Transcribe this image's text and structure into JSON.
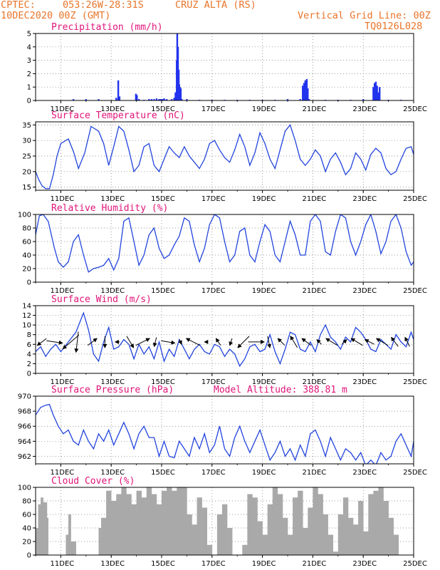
{
  "header": {
    "source": "CPTEC:",
    "coords": "053:26W-28:31S",
    "station": "CRUZ ALTA (RS)",
    "run_date": "10DEC2020 00Z (GMT)",
    "grid_note": "Vertical Grid Line: 00Z",
    "model_code": "TQ0126L028"
  },
  "colors": {
    "header": "#e8752a",
    "title": "#e0147a",
    "line": "#2244dd",
    "bar": "#2233ee",
    "cloud": "#a9a9a9"
  },
  "x_axis": {
    "days": 15,
    "tick_labels": [
      "11DEC",
      "13DEC",
      "15DEC",
      "17DEC",
      "19DEC",
      "21DEC",
      "23DEC",
      "25DEC"
    ],
    "tick_day_offsets": [
      1,
      3,
      5,
      7,
      9,
      11,
      13,
      15
    ]
  },
  "chart_data": [
    {
      "id": "precip",
      "type": "bar",
      "title": "Precipitation (mm/h)",
      "yticks": [
        0,
        1,
        2,
        3,
        4,
        5
      ],
      "ylim": [
        0,
        5
      ],
      "x_days": [
        1.5,
        2.0,
        2.5,
        3.2,
        3.28,
        3.33,
        3.98,
        4.02,
        4.1,
        4.3,
        4.5,
        4.6,
        4.7,
        4.8,
        4.9,
        4.95,
        5.0,
        5.05,
        5.1,
        5.2,
        5.4,
        5.5,
        5.55,
        5.6,
        5.62,
        5.65,
        5.68,
        5.7,
        5.73,
        5.76,
        5.8,
        6.0,
        6.5,
        7.0,
        7.5,
        8.0,
        8.5,
        9.0,
        9.5,
        10.0,
        10.5,
        10.6,
        10.65,
        10.7,
        10.73,
        10.76,
        10.8,
        10.85,
        11.5,
        12.0,
        12.5,
        13.0,
        13.4,
        13.45,
        13.5,
        13.55,
        13.6,
        13.65,
        14.0,
        14.5
      ],
      "values": [
        0.1,
        0.1,
        0.1,
        0.2,
        1.5,
        0.3,
        0.5,
        0.4,
        0.1,
        0.05,
        0.1,
        0.1,
        0.1,
        0.15,
        0.1,
        0.1,
        0.1,
        0.1,
        0.15,
        0.1,
        0.1,
        0.2,
        0.6,
        3.0,
        5.0,
        4.0,
        2.3,
        1.2,
        1.0,
        0.9,
        0.1,
        0.1,
        0.05,
        0.05,
        0.05,
        0.05,
        0.05,
        0.05,
        0.05,
        0.1,
        0.1,
        1.1,
        1.3,
        1.5,
        1.2,
        1.6,
        0.9,
        0.1,
        0.05,
        0.05,
        0.05,
        0.1,
        1.0,
        1.3,
        1.4,
        1.1,
        0.6,
        1.0,
        0.05,
        0.05
      ]
    },
    {
      "id": "temp",
      "type": "line",
      "title": "Surface Temperature (nC)",
      "yticks": [
        15,
        20,
        25,
        30,
        35
      ],
      "ylim": [
        14,
        36
      ],
      "x_days": [
        0.0,
        0.12,
        0.25,
        0.4,
        0.55,
        0.7,
        0.85,
        1.0,
        1.3,
        1.5,
        1.7,
        1.95,
        2.2,
        2.5,
        2.7,
        2.9,
        3.1,
        3.3,
        3.5,
        3.7,
        3.9,
        4.1,
        4.3,
        4.5,
        4.7,
        4.9,
        5.1,
        5.3,
        5.5,
        5.7,
        5.9,
        6.1,
        6.3,
        6.5,
        6.7,
        6.9,
        7.1,
        7.3,
        7.5,
        7.7,
        7.9,
        8.1,
        8.3,
        8.5,
        8.7,
        8.9,
        9.1,
        9.3,
        9.5,
        9.7,
        9.9,
        10.1,
        10.3,
        10.5,
        10.7,
        10.9,
        11.1,
        11.3,
        11.5,
        11.7,
        11.9,
        12.1,
        12.3,
        12.5,
        12.7,
        12.9,
        13.1,
        13.3,
        13.5,
        13.7,
        13.9,
        14.1,
        14.3,
        14.5,
        14.7,
        14.9,
        15.0
      ],
      "values": [
        20,
        17.5,
        15.5,
        14.5,
        14.5,
        19,
        25,
        29,
        30.5,
        26.5,
        21,
        26,
        34.5,
        33,
        29,
        22,
        28,
        34.5,
        33,
        27,
        20,
        22,
        28,
        29,
        22,
        20,
        24,
        28,
        26,
        24.5,
        28,
        25,
        23,
        21,
        24,
        29,
        30,
        27,
        24.5,
        23,
        27,
        32,
        28,
        22,
        26,
        32.5,
        29,
        24,
        21,
        27,
        33,
        35,
        30,
        24,
        22,
        24,
        27,
        25,
        20,
        24,
        26,
        23,
        19,
        21,
        26,
        24,
        20.5,
        25.5,
        27.5,
        26,
        21,
        19,
        20,
        24,
        27.5,
        28,
        25.5
      ]
    },
    {
      "id": "rh",
      "type": "line",
      "title": "Relative Humidity (%)",
      "yticks": [
        0,
        20,
        40,
        60,
        80,
        100
      ],
      "ylim": [
        0,
        100
      ],
      "x_days": [
        0.0,
        0.15,
        0.3,
        0.5,
        0.75,
        0.9,
        1.1,
        1.3,
        1.5,
        1.7,
        1.9,
        2.1,
        2.3,
        2.5,
        2.7,
        2.9,
        3.1,
        3.3,
        3.5,
        3.7,
        3.9,
        4.1,
        4.3,
        4.5,
        4.7,
        4.9,
        5.1,
        5.3,
        5.5,
        5.7,
        5.9,
        6.1,
        6.3,
        6.5,
        6.7,
        6.9,
        7.1,
        7.3,
        7.5,
        7.7,
        7.9,
        8.1,
        8.3,
        8.5,
        8.7,
        8.9,
        9.1,
        9.3,
        9.5,
        9.7,
        9.9,
        10.1,
        10.3,
        10.5,
        10.7,
        10.9,
        11.1,
        11.3,
        11.5,
        11.7,
        11.9,
        12.1,
        12.3,
        12.5,
        12.7,
        12.9,
        13.1,
        13.3,
        13.5,
        13.7,
        13.9,
        14.1,
        14.3,
        14.5,
        14.7,
        14.9,
        15.0
      ],
      "values": [
        70,
        98,
        100,
        90,
        50,
        30,
        22,
        30,
        60,
        70,
        40,
        15,
        20,
        22,
        25,
        35,
        18,
        35,
        90,
        95,
        60,
        25,
        40,
        70,
        80,
        50,
        35,
        40,
        55,
        68,
        95,
        90,
        55,
        30,
        50,
        85,
        100,
        95,
        60,
        30,
        40,
        75,
        80,
        40,
        30,
        60,
        85,
        75,
        40,
        30,
        60,
        90,
        70,
        40,
        40,
        90,
        100,
        90,
        45,
        40,
        75,
        100,
        95,
        60,
        40,
        60,
        85,
        100,
        75,
        42,
        60,
        90,
        100,
        80,
        45,
        25,
        30
      ]
    },
    {
      "id": "wind",
      "type": "line",
      "title": "Surface Wind (m/s)",
      "yticks": [
        0,
        2,
        4,
        6,
        8,
        10,
        12,
        14
      ],
      "ylim": [
        0,
        14
      ],
      "x_days": [
        0.0,
        0.2,
        0.4,
        0.6,
        0.8,
        1.0,
        1.3,
        1.6,
        1.9,
        2.1,
        2.3,
        2.5,
        2.7,
        2.9,
        3.1,
        3.3,
        3.5,
        3.7,
        3.9,
        4.1,
        4.3,
        4.5,
        4.7,
        4.9,
        5.1,
        5.3,
        5.5,
        5.7,
        5.9,
        6.1,
        6.3,
        6.5,
        6.7,
        6.9,
        7.1,
        7.3,
        7.5,
        7.7,
        7.9,
        8.1,
        8.3,
        8.5,
        8.7,
        8.9,
        9.1,
        9.3,
        9.5,
        9.7,
        9.9,
        10.1,
        10.3,
        10.5,
        10.7,
        10.9,
        11.1,
        11.3,
        11.5,
        11.7,
        11.9,
        12.1,
        12.3,
        12.5,
        12.7,
        12.9,
        13.1,
        13.3,
        13.5,
        13.7,
        13.9,
        14.1,
        14.3,
        14.5,
        14.7,
        14.9,
        15.0
      ],
      "values": [
        4.5,
        5.5,
        3.5,
        5.0,
        6.0,
        4.5,
        6.5,
        8.5,
        12.5,
        9.0,
        4.0,
        2.5,
        6.5,
        9.5,
        5.0,
        5.5,
        7.0,
        6.0,
        3.0,
        6.0,
        4.0,
        5.5,
        3.0,
        6.5,
        2.5,
        5.0,
        3.5,
        7.0,
        5.0,
        3.0,
        5.0,
        6.0,
        4.5,
        4.0,
        6.0,
        5.5,
        3.5,
        5.0,
        4.0,
        1.5,
        3.0,
        5.5,
        6.0,
        4.5,
        5.0,
        8.0,
        4.5,
        2.0,
        5.0,
        8.5,
        8.0,
        5.0,
        4.5,
        6.5,
        4.5,
        8.0,
        10.0,
        7.5,
        6.5,
        5.0,
        7.5,
        6.5,
        9.5,
        8.5,
        7.0,
        5.0,
        4.5,
        7.0,
        6.0,
        5.0,
        8.0,
        6.5,
        5.5,
        8.5,
        7.0
      ],
      "vectors": {
        "x_days": [
          0.25,
          0.75,
          1.4,
          1.65,
          2.25,
          2.75,
          3.25,
          3.75,
          4.25,
          4.75,
          5.25,
          5.75,
          6.25,
          6.75,
          7.25,
          7.75,
          8.25,
          8.75,
          9.25,
          9.75,
          10.25,
          10.75,
          11.25,
          11.75,
          12.25,
          12.75,
          13.25,
          13.75,
          14.25,
          14.75
        ],
        "u": [
          -0.4,
          0.7,
          -0.7,
          -0.1,
          0.4,
          0.0,
          -0.2,
          0.3,
          0.6,
          -0.1,
          0.6,
          0.1,
          -0.6,
          -0.1,
          -0.2,
          -0.1,
          -0.5,
          0.7,
          0.1,
          -0.3,
          -0.3,
          -0.4,
          -0.2,
          -0.5,
          0.2,
          -0.5,
          -0.4,
          -0.5,
          -0.3,
          -0.2
        ],
        "v": [
          -0.3,
          -0.1,
          -0.6,
          -0.9,
          0.3,
          -0.5,
          0.0,
          -0.5,
          0.3,
          -0.4,
          -0.1,
          -0.2,
          0.3,
          0.0,
          0.3,
          -0.3,
          -0.5,
          0.0,
          -0.5,
          0.3,
          0.5,
          0.3,
          0.2,
          0.3,
          0.2,
          0.3,
          0.2,
          0.3,
          0.4,
          0.4
        ]
      }
    },
    {
      "id": "pres",
      "type": "line",
      "title": "Surface Pressure (hPa)",
      "annotation": "Model Altitude: 388.81 m",
      "yticks": [
        962,
        964,
        966,
        968,
        970
      ],
      "ylim": [
        961,
        970
      ],
      "x_days": [
        0.0,
        0.2,
        0.4,
        0.55,
        0.7,
        0.9,
        1.1,
        1.3,
        1.5,
        1.7,
        1.9,
        2.1,
        2.3,
        2.5,
        2.7,
        2.9,
        3.1,
        3.3,
        3.5,
        3.7,
        3.9,
        4.1,
        4.3,
        4.5,
        4.7,
        4.9,
        5.1,
        5.3,
        5.5,
        5.7,
        5.9,
        6.1,
        6.3,
        6.5,
        6.7,
        6.9,
        7.1,
        7.3,
        7.5,
        7.7,
        7.9,
        8.1,
        8.3,
        8.5,
        8.7,
        8.9,
        9.1,
        9.3,
        9.5,
        9.7,
        9.9,
        10.1,
        10.3,
        10.5,
        10.7,
        10.9,
        11.1,
        11.3,
        11.5,
        11.7,
        11.9,
        12.1,
        12.3,
        12.5,
        12.7,
        12.9,
        13.1,
        13.3,
        13.5,
        13.7,
        13.9,
        14.1,
        14.3,
        14.5,
        14.7,
        14.9,
        15.0
      ],
      "values": [
        967.5,
        968.5,
        968.8,
        968.9,
        967.5,
        966,
        965,
        965.5,
        964,
        963.5,
        965.5,
        964,
        963,
        965,
        964,
        965.5,
        963.5,
        965,
        966.5,
        965,
        963,
        965,
        966,
        964.5,
        964.5,
        962,
        964,
        962,
        961.8,
        964,
        963,
        962,
        964.5,
        963,
        965,
        962.5,
        963.5,
        966,
        963,
        962,
        964.5,
        966,
        964,
        962.5,
        964,
        965.5,
        963.5,
        961.5,
        962.5,
        964,
        962,
        963,
        961.5,
        963.5,
        962,
        965,
        965.5,
        964,
        962,
        964.5,
        963,
        961.5,
        963,
        962.5,
        961.5,
        962.5,
        960.8,
        961.5,
        960.8,
        962.5,
        961.5,
        962,
        964,
        965,
        963.5,
        962,
        964
      ]
    },
    {
      "id": "cloud",
      "type": "area",
      "title": "Cloud Cover (%)",
      "yticks": [
        0,
        20,
        40,
        60,
        80,
        100
      ],
      "ylim": [
        0,
        100
      ],
      "x_days": [
        0.0,
        0.1,
        0.2,
        0.3,
        0.45,
        0.5,
        1.0,
        1.2,
        1.3,
        1.4,
        1.6,
        1.9,
        2.0,
        2.2,
        2.4,
        2.5,
        2.6,
        2.8,
        3.0,
        3.2,
        3.4,
        3.6,
        3.8,
        4.0,
        4.2,
        4.4,
        4.6,
        4.8,
        5.0,
        5.2,
        5.4,
        5.6,
        5.8,
        6.0,
        6.2,
        6.4,
        6.6,
        6.8,
        7.0,
        7.2,
        7.4,
        7.6,
        7.8,
        8.0,
        8.2,
        8.4,
        8.6,
        8.8,
        9.0,
        9.2,
        9.4,
        9.6,
        9.8,
        10.0,
        10.2,
        10.4,
        10.6,
        10.8,
        11.0,
        11.2,
        11.4,
        11.6,
        11.8,
        12.0,
        12.2,
        12.4,
        12.6,
        12.8,
        13.0,
        13.2,
        13.4,
        13.6,
        13.8,
        14.0,
        14.2,
        14.4,
        14.6,
        14.8,
        15.0
      ],
      "values": [
        40,
        75,
        85,
        78,
        55,
        0,
        0,
        30,
        60,
        20,
        0,
        0,
        0,
        0,
        0,
        40,
        55,
        95,
        80,
        90,
        100,
        90,
        75,
        95,
        85,
        100,
        90,
        75,
        95,
        100,
        95,
        100,
        100,
        60,
        45,
        85,
        70,
        15,
        0,
        60,
        75,
        40,
        0,
        0,
        15,
        90,
        85,
        50,
        30,
        75,
        100,
        90,
        55,
        30,
        85,
        95,
        40,
        70,
        100,
        90,
        60,
        30,
        5,
        60,
        85,
        55,
        45,
        80,
        35,
        90,
        95,
        100,
        80,
        55,
        30,
        0,
        0,
        0,
        0
      ]
    }
  ]
}
